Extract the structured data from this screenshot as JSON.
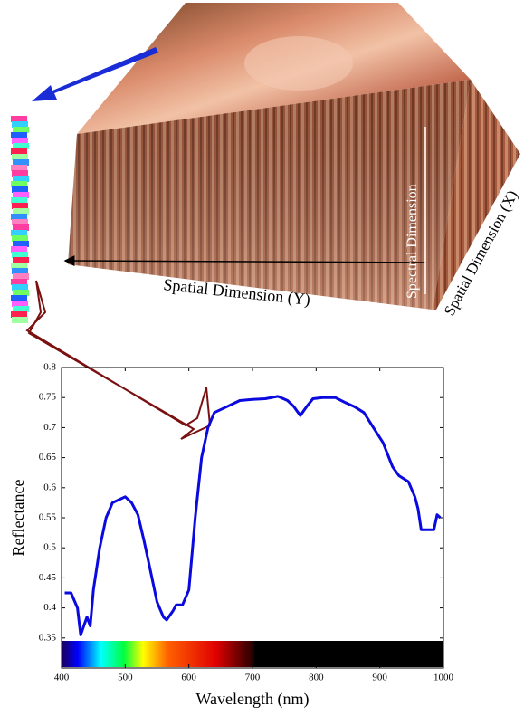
{
  "chart_data": {
    "type": "line",
    "annotations": [
      "Spatial Dimension (Y)",
      "Spectral Dimension",
      "Spatial Dimension (X)"
    ],
    "x_label": "Wavelength (nm)",
    "y_label": "Reflectance",
    "x": [
      405,
      415,
      425,
      430,
      435,
      440,
      445,
      450,
      460,
      470,
      480,
      490,
      500,
      510,
      520,
      530,
      540,
      550,
      560,
      565,
      575,
      580,
      590,
      600,
      610,
      620,
      630,
      640,
      660,
      680,
      700,
      720,
      740,
      755,
      765,
      775,
      785,
      795,
      810,
      830,
      845,
      860,
      875,
      890,
      905,
      920,
      930,
      945,
      955,
      960,
      965,
      975,
      985,
      990,
      995
    ],
    "series": [
      {
        "color": "#0a0ae0",
        "values": [
          0.425,
          0.425,
          0.4,
          0.355,
          0.37,
          0.385,
          0.37,
          0.43,
          0.5,
          0.55,
          0.575,
          0.58,
          0.585,
          0.575,
          0.555,
          0.51,
          0.46,
          0.41,
          0.385,
          0.38,
          0.395,
          0.405,
          0.405,
          0.43,
          0.55,
          0.65,
          0.7,
          0.725,
          0.735,
          0.745,
          0.747,
          0.748,
          0.752,
          0.745,
          0.735,
          0.72,
          0.735,
          0.748,
          0.75,
          0.75,
          0.742,
          0.735,
          0.725,
          0.7,
          0.675,
          0.635,
          0.62,
          0.61,
          0.585,
          0.565,
          0.53,
          0.53,
          0.53,
          0.555,
          0.55
        ]
      }
    ],
    "xlim": [
      400,
      1000
    ],
    "xticks": [
      400,
      500,
      600,
      700,
      800,
      900,
      1000
    ],
    "ylim": [
      0.3,
      0.8
    ],
    "yticks": [
      0.35,
      0.4,
      0.45,
      0.5,
      0.55,
      0.6,
      0.65,
      0.7,
      0.75,
      0.8
    ]
  }
}
